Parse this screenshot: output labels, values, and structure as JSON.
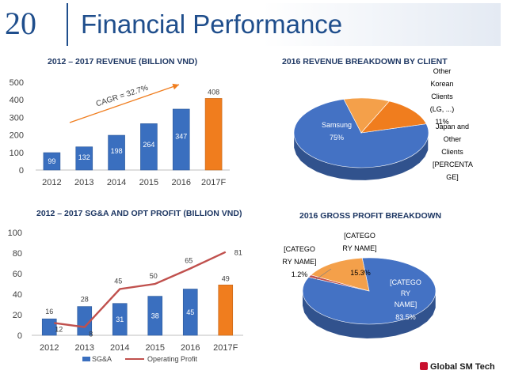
{
  "slide": {
    "number": "20",
    "title": "Financial Performance"
  },
  "logo": {
    "text": "Global SM Tech"
  },
  "chart_data": [
    {
      "type": "bar",
      "title": "2012 – 2017 REVENUE (BILLION VND)",
      "categories": [
        "2012",
        "2013",
        "2014",
        "2015",
        "2016",
        "2017F"
      ],
      "values": [
        99,
        132,
        198,
        264,
        347,
        408
      ],
      "ylim": [
        0,
        500
      ],
      "yticks": [
        "0",
        "100",
        "200",
        "300",
        "400",
        "500"
      ],
      "annotation": "CAGR = 32.7%",
      "colors": {
        "actual": "#3a6fbf",
        "forecast": "#f07d1e"
      }
    },
    {
      "type": "pie",
      "title": "2016 REVENUE BREAKDOWN BY CLIENT",
      "slices": [
        {
          "label": "Samsung",
          "value": 75,
          "text": "75%",
          "color": "#4472c4"
        },
        {
          "label": "Other Korean Clients (LG, ...)",
          "value": 11,
          "text": "11%",
          "color": "#f4a04a"
        },
        {
          "label": "Japan and Other Clients [PERCENTAGE]",
          "value": 14,
          "text": "",
          "color": "#f07d1e"
        }
      ],
      "callouts": {
        "other_korean": "Other Korean Clients (LG, ...)",
        "other_korean_pct": "11%",
        "japan": "Japan and Other Clients [PERCENTA GE]"
      }
    },
    {
      "type": "bar+line",
      "title": "2012 – 2017 SG&A AND OPT PROFIT (BILLION VND)",
      "categories": [
        "2012",
        "2013",
        "2014",
        "2015",
        "2016",
        "2017F"
      ],
      "series": [
        {
          "name": "SG&A",
          "type": "bar",
          "values": [
            16,
            28,
            31,
            38,
            45,
            49
          ],
          "color": "#3a6fbf"
        },
        {
          "name": "Operating Profit",
          "type": "line",
          "values": [
            12,
            8,
            45,
            50,
            65,
            81
          ],
          "color": "#c0504d"
        }
      ],
      "ylim": [
        0,
        100
      ],
      "yticks": [
        "0",
        "20",
        "40",
        "60",
        "80",
        "100"
      ]
    },
    {
      "type": "pie",
      "title": "2016 GROSS PROFIT BREAKDOWN",
      "slices": [
        {
          "label": "[CATEGORY NAME]",
          "value": 83.5,
          "text": "83.5%",
          "color": "#4472c4"
        },
        {
          "label": "[CATEGORY NAME]",
          "value": 1.2,
          "text": "1.2%",
          "color": "#c0504d"
        },
        {
          "label": "[CATEGORY NAME]",
          "value": 15.3,
          "text": "15.3%",
          "color": "#f4a04a"
        }
      ],
      "callouts": {
        "main": "[CATEGO RY NAME]",
        "small": "[CATEGO RY NAME]",
        "orange": "[CATEGO RY NAME]"
      }
    }
  ]
}
